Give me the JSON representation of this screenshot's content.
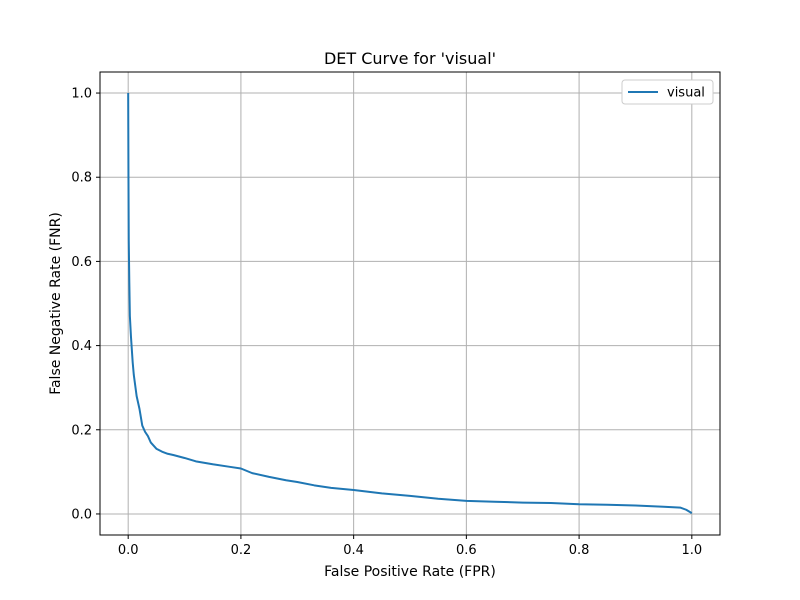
{
  "chart_data": {
    "type": "line",
    "title": "DET Curve for 'visual'",
    "xlabel": "False Positive Rate (FPR)",
    "ylabel": "False Negative Rate (FNR)",
    "xlim": [
      -0.05,
      1.05
    ],
    "ylim": [
      -0.05,
      1.05
    ],
    "xticks": [
      0.0,
      0.2,
      0.4,
      0.6,
      0.8,
      1.0
    ],
    "yticks": [
      0.0,
      0.2,
      0.4,
      0.6,
      0.8,
      1.0
    ],
    "xtick_labels": [
      "0.0",
      "0.2",
      "0.4",
      "0.6",
      "0.8",
      "1.0"
    ],
    "ytick_labels": [
      "0.0",
      "0.2",
      "0.4",
      "0.6",
      "0.8",
      "1.0"
    ],
    "grid": true,
    "legend": "top-right",
    "series": [
      {
        "name": "visual",
        "color": "#1f77b4",
        "x": [
          0.0,
          0.0005,
          0.001,
          0.002,
          0.003,
          0.005,
          0.008,
          0.01,
          0.012,
          0.015,
          0.02,
          0.025,
          0.03,
          0.035,
          0.04,
          0.05,
          0.06,
          0.07,
          0.08,
          0.1,
          0.12,
          0.15,
          0.18,
          0.2,
          0.22,
          0.25,
          0.28,
          0.3,
          0.33,
          0.36,
          0.4,
          0.45,
          0.5,
          0.55,
          0.6,
          0.65,
          0.7,
          0.75,
          0.8,
          0.85,
          0.9,
          0.95,
          0.98,
          0.99,
          1.0
        ],
        "y": [
          1.0,
          0.8,
          0.65,
          0.55,
          0.47,
          0.42,
          0.36,
          0.33,
          0.31,
          0.28,
          0.25,
          0.21,
          0.195,
          0.185,
          0.17,
          0.155,
          0.148,
          0.143,
          0.14,
          0.133,
          0.125,
          0.118,
          0.112,
          0.108,
          0.097,
          0.088,
          0.08,
          0.076,
          0.068,
          0.062,
          0.057,
          0.049,
          0.043,
          0.036,
          0.031,
          0.029,
          0.027,
          0.026,
          0.023,
          0.022,
          0.02,
          0.017,
          0.015,
          0.01,
          0.002
        ]
      }
    ]
  }
}
